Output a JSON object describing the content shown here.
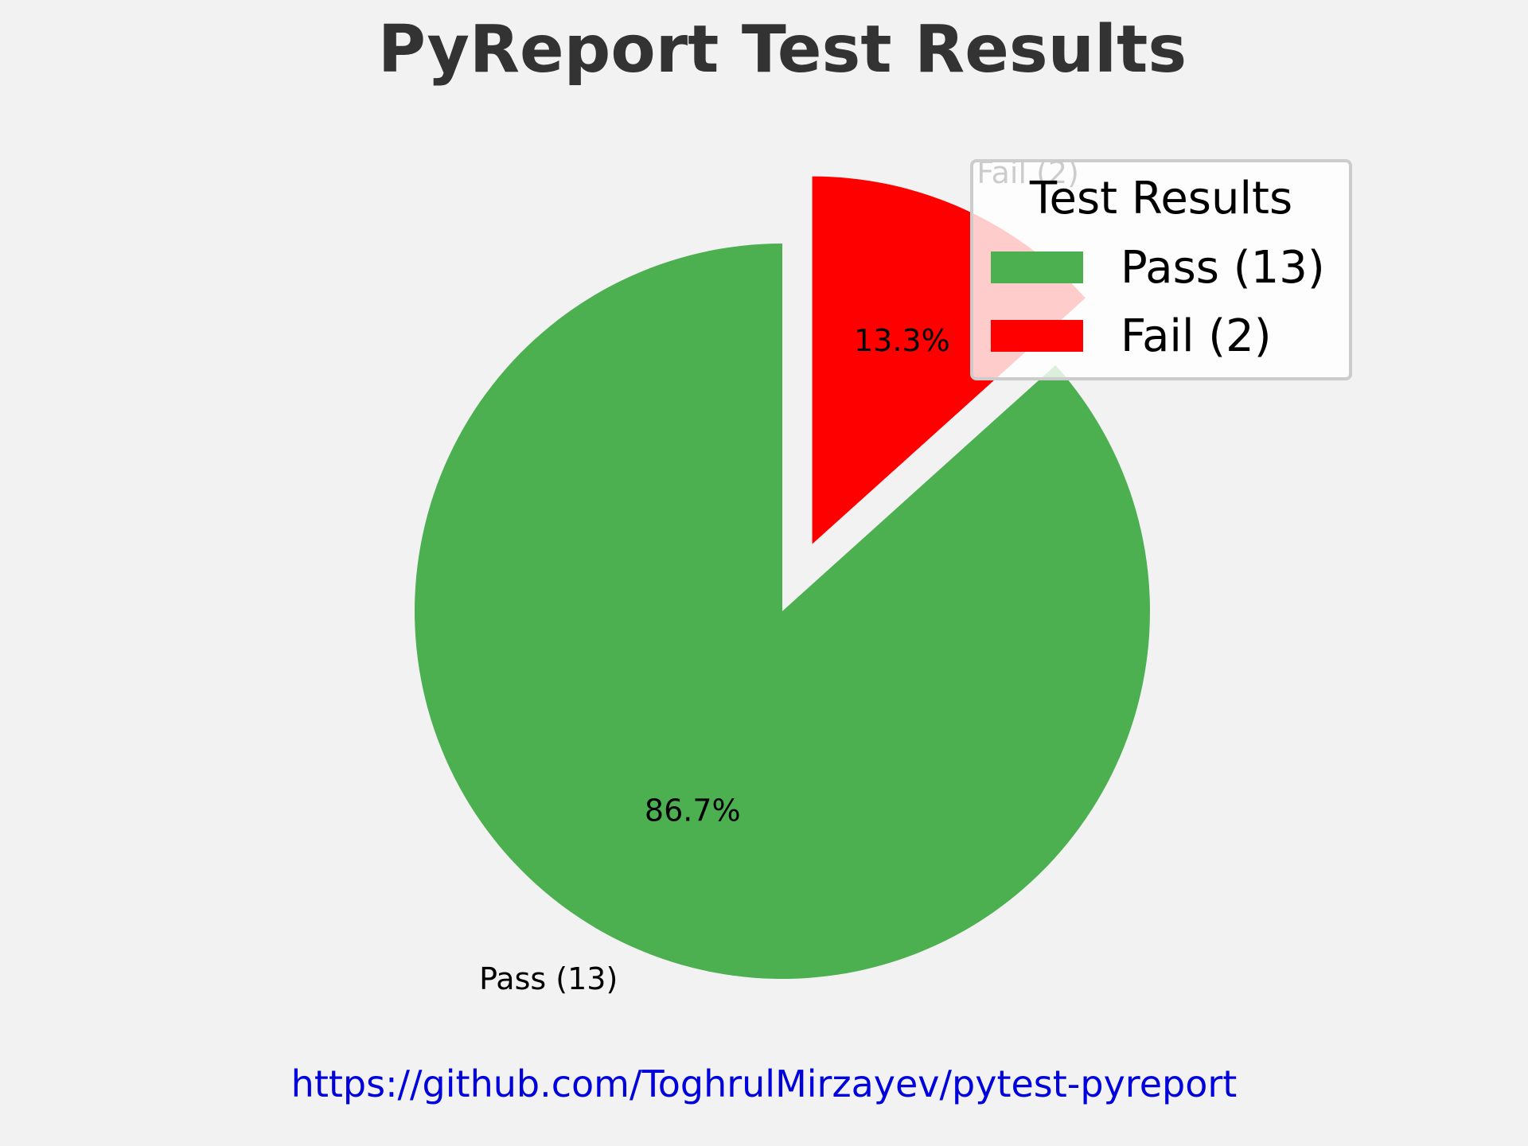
{
  "chart_data": {
    "type": "pie",
    "title": "PyReport Test Results",
    "categories": [
      "Pass (13)",
      "Fail (2)"
    ],
    "values": [
      13,
      2
    ],
    "percent_labels": [
      "86.7%",
      "13.3%"
    ],
    "colors": [
      "#4caf50",
      "#ff0000"
    ],
    "exploded": [
      false,
      true
    ],
    "legend": {
      "title": "Test Results",
      "placement": "top-right",
      "entries": [
        "Pass (13)",
        "Fail (2)"
      ]
    }
  },
  "footer": {
    "link_text": "https://github.com/ToghrulMirzayev/pytest-pyreport"
  }
}
